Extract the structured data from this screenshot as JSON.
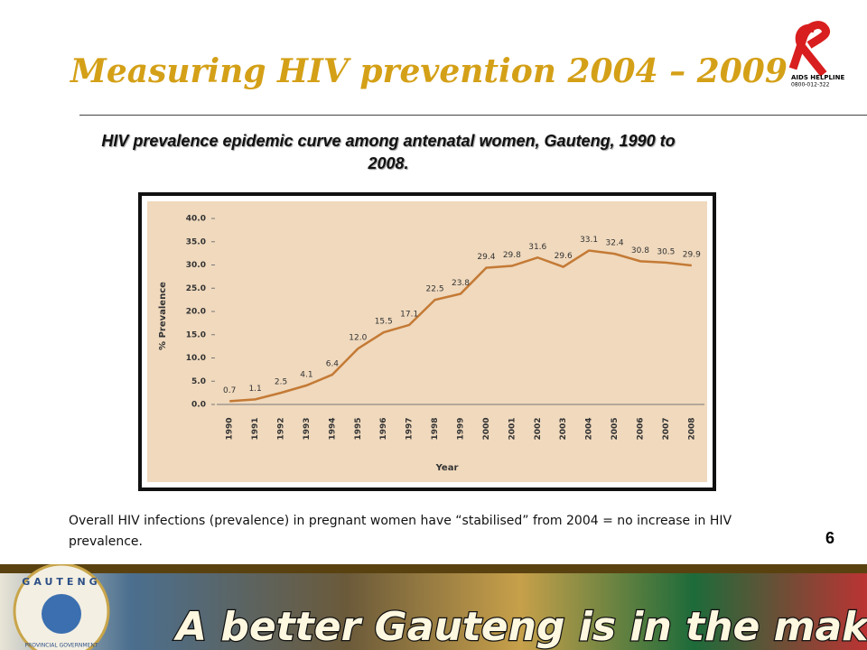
{
  "title": "Measuring HIV prevention 2004 – 2009",
  "logo": {
    "name": "AIDS HELPLINE",
    "phone": "0800-012-322"
  },
  "chart_data": {
    "type": "line",
    "title": "HIV prevalence epidemic curve among antenatal women, Gauteng, 1990 to 2008.",
    "xlabel": "Year",
    "ylabel": "% Prevalence",
    "categories": [
      "1990",
      "1991",
      "1992",
      "1993",
      "1994",
      "1995",
      "1996",
      "1997",
      "1998",
      "1999",
      "2000",
      "2001",
      "2002",
      "2003",
      "2004",
      "2005",
      "2006",
      "2007",
      "2008"
    ],
    "values": [
      0.7,
      1.1,
      2.5,
      4.1,
      6.4,
      12.0,
      15.5,
      17.1,
      22.5,
      23.8,
      29.4,
      29.8,
      31.6,
      29.6,
      33.1,
      32.4,
      30.8,
      30.5,
      29.9
    ],
    "value_labels": [
      "0.7",
      "1.1",
      "2.5",
      "4.1",
      "6.4",
      "12.0",
      "15.5",
      "17.1",
      "22.5",
      "23.8",
      "29.4",
      "29.8",
      "31.6",
      "29.6",
      "33.1",
      "32.4",
      "30.8",
      "30.5",
      "29.9"
    ],
    "color": "#c47a35",
    "ylim": [
      0,
      40
    ],
    "yticks": [
      {
        "value": 0,
        "label": "0.0"
      },
      {
        "value": 5,
        "label": "5.0"
      },
      {
        "value": 10,
        "label": "10.0"
      },
      {
        "value": 15,
        "label": "15.0"
      },
      {
        "value": 20,
        "label": "20.0"
      },
      {
        "value": 25,
        "label": "25.0"
      },
      {
        "value": 30,
        "label": "30.0"
      },
      {
        "value": 35,
        "label": "35.0"
      },
      {
        "value": 40,
        "label": "40.0"
      }
    ]
  },
  "note": "Overall HIV infections (prevalence) in pregnant women have “stabilised” from 2004 = no increase in HIV prevalence.",
  "page_number": "6",
  "footer": {
    "slogan": "A better Gauteng is in the making",
    "emblem_top": "GAUTENG",
    "emblem_bottom": "PROVINCIAL GOVERNMENT"
  }
}
